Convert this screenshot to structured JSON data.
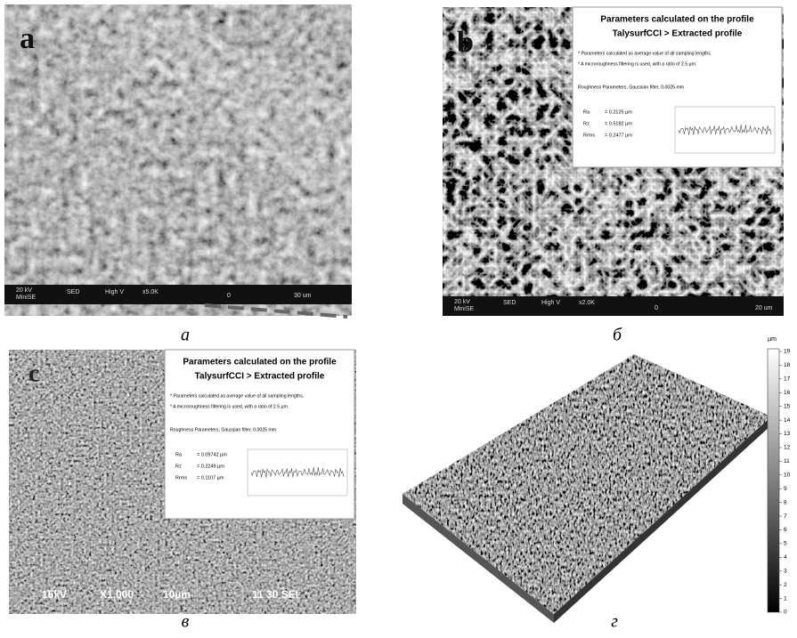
{
  "panels": [
    {
      "letter": "a",
      "caption": "а",
      "bar_left": [
        "20 kV",
        "MiniSE"
      ],
      "bar_items": [
        "SED",
        "High V",
        "x5.0K",
        "0",
        "30 um"
      ]
    },
    {
      "letter": "b",
      "caption": "б",
      "bar_left": [
        "20 kV",
        "MiniSE"
      ],
      "bar_items": [
        "SED",
        "High V",
        "x2.0K",
        "0",
        "20 um"
      ],
      "info": {
        "title": [
          "Parameters calculated on the profile",
          "TalysurfCCI > Extracted profile"
        ],
        "notes": [
          "* Parameters calculated as average value of all sampling lengths.",
          "* A microroughness filtering is used, with a ratio of 2.5 µm."
        ],
        "filter": "Roughness Parameters, Gaussian filter, 0.0025 mm",
        "params": [
          {
            "name": "Ra",
            "value": "= 0.2125 µm"
          },
          {
            "name": "Rz",
            "value": "= 0.5182 µm"
          },
          {
            "name": "Rrms",
            "value": "= 0.2477 µm"
          }
        ]
      }
    },
    {
      "letter": "c",
      "caption": "в",
      "bar_items": [
        "15kV",
        "X1,000",
        "10µm",
        "11 30 SEI"
      ],
      "info": {
        "title": [
          "Parameters calculated on the profile",
          "TalysurfCCI > Extracted profile"
        ],
        "notes": [
          "* Parameters calculated as average value of all sampling lengths.",
          "* A microroughness filtering is used, with a ratio of 2.5 µm."
        ],
        "filter": "Roughness Parameters, Gaussian filter, 0.0025 mm",
        "params": [
          {
            "name": "Ra",
            "value": "= 0.09742 µm"
          },
          {
            "name": "Rz",
            "value": "= 0.2249 µm"
          },
          {
            "name": "Rrms",
            "value": "= 0.1107 µm"
          }
        ]
      }
    },
    {
      "caption": "г",
      "colorbar": {
        "unit": "µm",
        "ticks": [
          0,
          1,
          2,
          3,
          4,
          5,
          6,
          7,
          8,
          9,
          10,
          11,
          12,
          13,
          14,
          15,
          16,
          17,
          18,
          19
        ]
      }
    }
  ]
}
